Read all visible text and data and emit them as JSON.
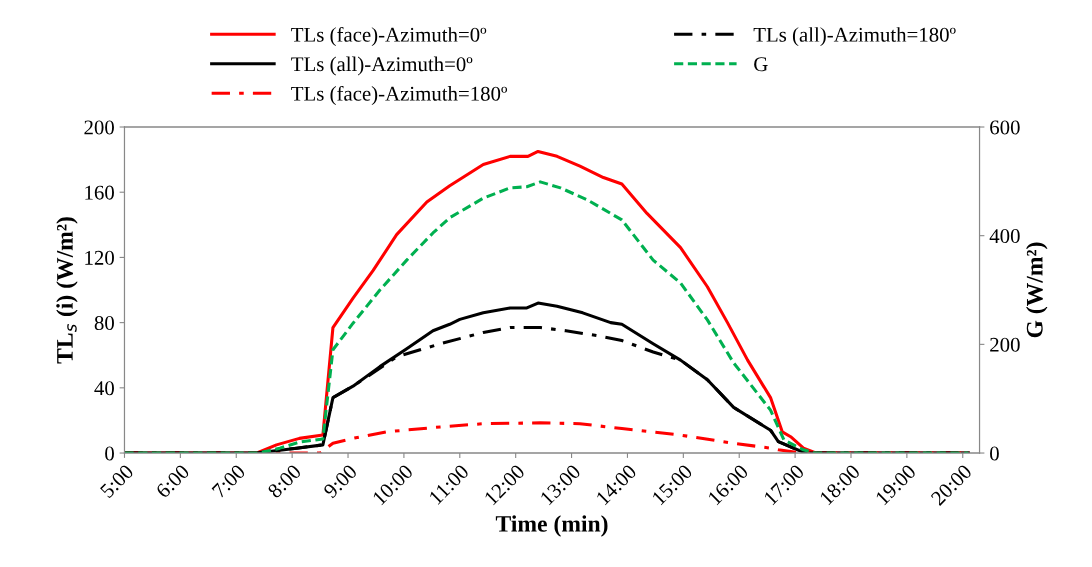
{
  "chart_data": {
    "type": "line",
    "xlabel": "Time (min)",
    "ylabel": "TL$_{s}$ (i) (W/m²)",
    "y2label": "G (W/m²)",
    "xlim": [
      5,
      20.3
    ],
    "xticks": [
      {
        "value": 5,
        "label": "5:00"
      },
      {
        "value": 6,
        "label": "6:00"
      },
      {
        "value": 7,
        "label": "7:00"
      },
      {
        "value": 8,
        "label": "8:00"
      },
      {
        "value": 9,
        "label": "9:00"
      },
      {
        "value": 10,
        "label": "10:00"
      },
      {
        "value": 11,
        "label": "11:00"
      },
      {
        "value": 12,
        "label": "12:00"
      },
      {
        "value": 13,
        "label": "13:00"
      },
      {
        "value": 14,
        "label": "14:00"
      },
      {
        "value": 15,
        "label": "15:00"
      },
      {
        "value": 16,
        "label": "16:00"
      },
      {
        "value": 17,
        "label": "17:00"
      },
      {
        "value": 18,
        "label": "18:00"
      },
      {
        "value": 19,
        "label": "19:00"
      },
      {
        "value": 20,
        "label": "20:00"
      }
    ],
    "ylim": [
      0,
      200
    ],
    "yticks": [
      0,
      40,
      80,
      120,
      160,
      200
    ],
    "y2lim": [
      0,
      600
    ],
    "y2ticks": [
      0,
      200,
      400,
      600
    ],
    "grid": false,
    "legend": "top",
    "marker": "none",
    "series": [
      {
        "name": "TLs (face)-Azimuth=0º",
        "color": "#ff0000",
        "line_style": "solid",
        "x": [
          5,
          7.37,
          7.72,
          8.13,
          8.55,
          8.73,
          9.09,
          9.45,
          9.87,
          10.41,
          10.82,
          11.42,
          11.9,
          12.22,
          12.4,
          12.74,
          13.15,
          13.57,
          13.9,
          14.35,
          14.95,
          15.43,
          15.79,
          16.15,
          16.56,
          16.77,
          16.92,
          17.15,
          17.37,
          20.1
        ],
        "values": [
          0,
          0,
          5,
          9,
          11,
          77,
          95,
          112,
          134,
          154,
          164,
          177,
          182,
          182,
          185,
          182,
          176,
          169,
          165,
          147,
          126,
          102,
          80,
          57,
          34,
          13,
          10,
          3,
          0,
          0
        ]
      },
      {
        "name": "TLs (all)-Azimuth=0º",
        "color": "#000000",
        "line_style": "solid",
        "x": [
          5,
          7.37,
          8.08,
          8.55,
          8.73,
          9.09,
          9.57,
          10.05,
          10.52,
          10.82,
          11.0,
          11.42,
          11.9,
          12.2,
          12.4,
          12.74,
          13.2,
          13.7,
          13.9,
          14.46,
          14.95,
          15.43,
          15.9,
          16.56,
          16.7,
          17.04,
          17.2,
          20.1
        ],
        "values": [
          0,
          0,
          3,
          5,
          34,
          41,
          53,
          64,
          75,
          79,
          82,
          86,
          89,
          89,
          92,
          90,
          86,
          80,
          79,
          67,
          57,
          45,
          28,
          14,
          7,
          2,
          0,
          0
        ]
      },
      {
        "name": "TLs (face)-Azimuth=180º",
        "color": "#ff0000",
        "line_style": "dashdot",
        "x": [
          5,
          8.5,
          8.73,
          9.09,
          9.69,
          10.65,
          11.42,
          12.44,
          13.15,
          13.9,
          14.95,
          15.9,
          16.56,
          16.7,
          17.1,
          20.1
        ],
        "values": [
          0,
          0,
          6,
          9,
          13,
          16,
          18,
          18.5,
          18,
          15,
          11,
          6,
          3,
          2,
          0,
          0
        ]
      },
      {
        "name": "TLs (all)-Azimuth=180º",
        "color": "#000000",
        "line_style": "dashdot",
        "x": [
          5,
          7.37,
          8.08,
          8.55,
          8.73,
          9.09,
          9.87,
          10.65,
          11.42,
          11.9,
          12.44,
          12.9,
          13.46,
          13.9,
          14.46,
          14.95,
          15.43,
          15.9,
          16.56,
          16.7,
          17.04,
          17.2,
          20.1
        ],
        "values": [
          0,
          0,
          3,
          5,
          34,
          41,
          59,
          67,
          74,
          77,
          77,
          75,
          72,
          69,
          62,
          57,
          45,
          28,
          14,
          7,
          2,
          0,
          0
        ]
      },
      {
        "name": "G",
        "color": "#00b050",
        "line_style": "dashed",
        "axis": "y2",
        "x": [
          5,
          7.4,
          7.78,
          8.13,
          8.55,
          8.73,
          9.09,
          9.57,
          10.05,
          10.52,
          10.82,
          11.42,
          11.9,
          12.2,
          12.44,
          12.8,
          13.28,
          13.9,
          14.46,
          14.95,
          15.43,
          15.9,
          16.56,
          16.8,
          17.15,
          17.35,
          20.1
        ],
        "values": [
          0,
          0,
          9,
          20,
          26,
          190,
          239,
          300,
          355,
          405,
          433,
          469,
          488,
          490,
          499,
          488,
          466,
          429,
          355,
          313,
          245,
          166,
          79,
          24,
          6,
          0,
          0
        ]
      }
    ]
  }
}
